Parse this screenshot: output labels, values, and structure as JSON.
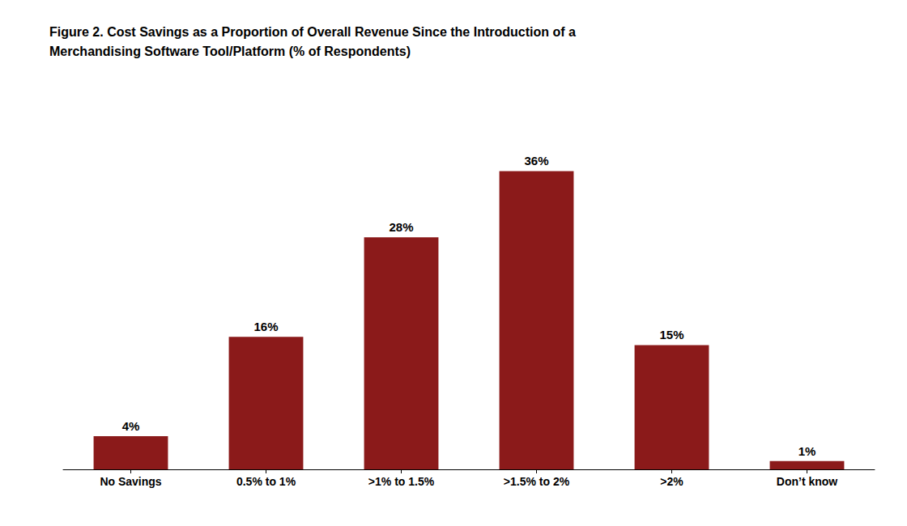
{
  "chart_data": {
    "type": "bar",
    "title": "Figure 2. Cost Savings as a Proportion of Overall Revenue Since the Introduction of a\nMerchandising Software Tool/Platform (% of Respondents)",
    "categories": [
      "No Savings",
      "0.5% to 1%",
      ">1% to 1.5%",
      ">1.5% to 2%",
      ">2%",
      "Don’t know"
    ],
    "values": [
      4,
      16,
      28,
      36,
      15,
      1
    ],
    "value_labels": [
      "4%",
      "16%",
      "28%",
      "36%",
      "15%",
      "1%"
    ],
    "color": "#8B1A1A",
    "ylim": [
      0,
      42
    ],
    "grid": false,
    "data_labels": true,
    "tick_labels": "x"
  }
}
